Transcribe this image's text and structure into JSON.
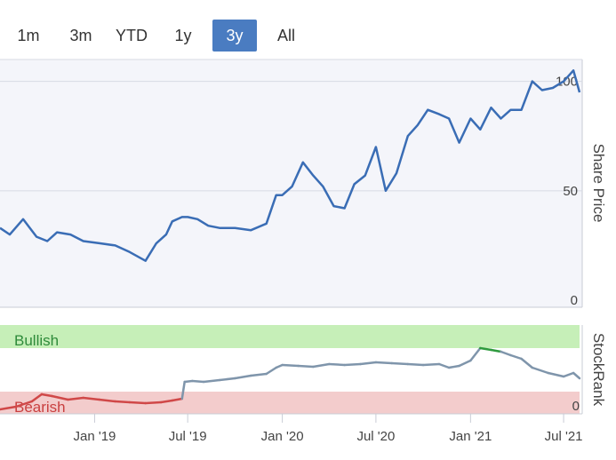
{
  "range_selector": {
    "buttons": [
      {
        "label": "1m",
        "active": false
      },
      {
        "label": "3m",
        "active": false
      },
      {
        "label": "YTD",
        "active": false
      },
      {
        "label": "1y",
        "active": false
      },
      {
        "label": "3y",
        "active": true
      },
      {
        "label": "All",
        "active": false
      }
    ]
  },
  "colors": {
    "accent": "#4a7cc1",
    "price_line": "#3a6db5",
    "rank_neutral": "#7f95ab",
    "rank_bullish": "#2e9a3e",
    "rank_bearish": "#d04848",
    "bullish_band": "#c6efb8",
    "bearish_band": "#f3cccc"
  },
  "chart_data": [
    {
      "type": "line",
      "ylabel": "Share Price",
      "ylim": [
        0,
        110
      ],
      "yticks": [
        "0",
        "50",
        "100"
      ],
      "series": [
        {
          "x": [
            "2018-07-01",
            "2018-07-20",
            "2018-08-15",
            "2018-09-10",
            "2018-10-01",
            "2018-10-20",
            "2018-11-15",
            "2018-12-10",
            "2019-01-10",
            "2019-02-10",
            "2019-03-10",
            "2019-04-10",
            "2019-05-01",
            "2019-05-20",
            "2019-06-01",
            "2019-06-20",
            "2019-07-01",
            "2019-07-20",
            "2019-08-10",
            "2019-09-01",
            "2019-10-01",
            "2019-11-01",
            "2019-12-01",
            "2019-12-20",
            "2020-01-01",
            "2020-01-20",
            "2020-02-10",
            "2020-03-01",
            "2020-03-20",
            "2020-04-10",
            "2020-05-01",
            "2020-05-20",
            "2020-06-10",
            "2020-07-01",
            "2020-07-20",
            "2020-08-10",
            "2020-09-01",
            "2020-09-20",
            "2020-10-10",
            "2020-11-01",
            "2020-11-20",
            "2020-12-10",
            "2021-01-01",
            "2021-01-20",
            "2021-02-10",
            "2021-03-01",
            "2021-03-20",
            "2021-04-10",
            "2021-05-01",
            "2021-05-20",
            "2021-06-10",
            "2021-07-01",
            "2021-07-20",
            "2021-08-01"
          ],
          "values": [
            33,
            30,
            37,
            29,
            27,
            31,
            30,
            27,
            26,
            25,
            22,
            18,
            26,
            30,
            36,
            38,
            38,
            37,
            34,
            33,
            33,
            32,
            35,
            48,
            48,
            52,
            63,
            57,
            52,
            43,
            42,
            53,
            57,
            70,
            50,
            58,
            75,
            80,
            87,
            85,
            83,
            72,
            83,
            78,
            88,
            83,
            87,
            87,
            100,
            96,
            97,
            100,
            105,
            95
          ]
        }
      ]
    },
    {
      "type": "line",
      "ylabel": "StockRank",
      "ylim": [
        0,
        100
      ],
      "yticks": [
        "0"
      ],
      "bands": [
        "Bullish",
        "Bearish"
      ],
      "series": [
        {
          "x": [
            "2018-07-01",
            "2018-08-01",
            "2018-09-01",
            "2018-09-20",
            "2018-10-10",
            "2018-11-10",
            "2018-12-10",
            "2019-01-10",
            "2019-02-10",
            "2019-03-10",
            "2019-04-10",
            "2019-05-10",
            "2019-06-01",
            "2019-06-20",
            "2019-06-25",
            "2019-07-10",
            "2019-08-01",
            "2019-09-01",
            "2019-10-01",
            "2019-11-01",
            "2019-12-01",
            "2019-12-20",
            "2020-01-01",
            "2020-02-01",
            "2020-03-01",
            "2020-04-01",
            "2020-05-01",
            "2020-06-01",
            "2020-07-01",
            "2020-08-01",
            "2020-09-01",
            "2020-10-01",
            "2020-11-01",
            "2020-11-20",
            "2020-12-10",
            "2021-01-01",
            "2021-01-20",
            "2021-02-10",
            "2021-03-01",
            "2021-03-20",
            "2021-04-10",
            "2021-05-01",
            "2021-06-01",
            "2021-07-01",
            "2021-07-20",
            "2021-08-01"
          ],
          "values": [
            5,
            8,
            14,
            22,
            20,
            16,
            18,
            16,
            14,
            13,
            12,
            13,
            15,
            17,
            36,
            37,
            36,
            38,
            40,
            43,
            45,
            52,
            55,
            54,
            53,
            56,
            55,
            56,
            58,
            57,
            56,
            55,
            56,
            52,
            54,
            60,
            74,
            72,
            70,
            66,
            62,
            52,
            46,
            42,
            46,
            40
          ]
        }
      ]
    }
  ],
  "x_axis": {
    "labels": [
      "Jan '19",
      "Jul '19",
      "Jan '20",
      "Jul '20",
      "Jan '21",
      "Jul '21"
    ]
  }
}
